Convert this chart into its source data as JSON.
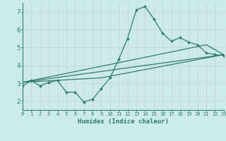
{
  "xlabel": "Humidex (Indice chaleur)",
  "xlim": [
    0,
    23
  ],
  "ylim": [
    1.5,
    7.5
  ],
  "xticks": [
    0,
    1,
    2,
    3,
    4,
    5,
    6,
    7,
    8,
    9,
    10,
    11,
    12,
    13,
    14,
    15,
    16,
    17,
    18,
    19,
    20,
    21,
    22,
    23
  ],
  "yticks": [
    2,
    3,
    4,
    5,
    6,
    7
  ],
  "bg_color": "#cdeaea",
  "line_color": "#2d7d6e",
  "grid_color": "#b8d8d8",
  "line1": {
    "x": [
      0,
      1,
      2,
      3,
      4,
      5,
      6,
      7,
      8,
      9,
      10,
      11,
      12,
      13,
      14,
      15,
      16,
      17,
      18,
      19,
      20,
      21,
      22,
      23
    ],
    "y": [
      2.85,
      3.15,
      2.85,
      3.05,
      3.15,
      2.5,
      2.5,
      1.95,
      2.1,
      2.7,
      3.3,
      4.35,
      5.5,
      7.1,
      7.3,
      6.6,
      5.8,
      5.35,
      5.55,
      5.3,
      5.15,
      4.7,
      4.6,
      4.55
    ]
  },
  "line2": {
    "x": [
      0,
      23
    ],
    "y": [
      3.05,
      4.6
    ]
  },
  "line3": {
    "x": [
      0,
      9,
      23
    ],
    "y": [
      3.05,
      3.3,
      4.6
    ]
  },
  "line4": {
    "x": [
      0,
      21,
      23
    ],
    "y": [
      3.05,
      5.15,
      4.6
    ]
  }
}
